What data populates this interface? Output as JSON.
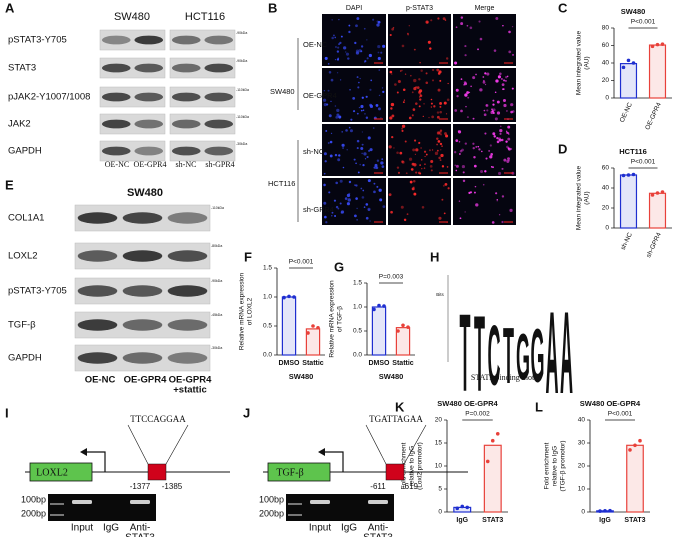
{
  "panel_a": {
    "label": "A",
    "groups": [
      "SW480",
      "HCT116"
    ],
    "rows": [
      {
        "name": "pSTAT3-Y705",
        "marker": "-90kDa"
      },
      {
        "name": "STAT3",
        "marker": "-90kDa"
      },
      {
        "name": "pJAK2-Y1007/1008",
        "marker": "-110kDa"
      },
      {
        "name": "JAK2",
        "marker": "-110kDa"
      },
      {
        "name": "GAPDH",
        "marker": "-30kDa"
      }
    ],
    "lanes": [
      "OE-NC",
      "OE-GPR4",
      "sh-NC",
      "sh-GPR4"
    ]
  },
  "panel_b": {
    "label": "B",
    "channels": [
      "DAPI",
      "p-STAT3",
      "Merge"
    ],
    "cells": [
      "SW480",
      "HCT116"
    ],
    "conditions": [
      "OE-NC",
      "OE-GPR4",
      "sh-NC",
      "sh-GPR4"
    ]
  },
  "panel_c": {
    "label": "C",
    "chart": {
      "type": "bar",
      "title": "SW480",
      "ylabel": [
        "Mean integrated value",
        "(AU)"
      ],
      "categories": [
        "OE-NC",
        "OE-GPR4"
      ],
      "values": [
        39.3,
        60.5
      ],
      "points": [
        [
          35,
          43,
          40
        ],
        [
          59,
          61,
          61.5
        ]
      ],
      "colors": [
        "#1f2fd0",
        "#e8413a"
      ],
      "ylim": [
        0,
        80
      ],
      "yticks": [
        0,
        20,
        40,
        60,
        80
      ],
      "annotation": "P<0.001"
    }
  },
  "panel_d": {
    "label": "D",
    "chart": {
      "type": "bar",
      "title": "HCT116",
      "ylabel": [
        "Mean integrated value",
        "(AU)"
      ],
      "categories": [
        "sh-NC",
        "sh-GPR4"
      ],
      "values": [
        53,
        34.7
      ],
      "points": [
        [
          52.5,
          53,
          53.5
        ],
        [
          33,
          35,
          36
        ]
      ],
      "colors": [
        "#1f2fd0",
        "#e8413a"
      ],
      "ylim": [
        0,
        60
      ],
      "yticks": [
        0,
        20,
        40,
        60
      ],
      "annotation": "P<0.001"
    }
  },
  "panel_e": {
    "label": "E",
    "group": "SW480",
    "rows": [
      {
        "name": "COL1A1",
        "marker": "-110kDa"
      },
      {
        "name": "LOXL2",
        "marker": "-80kDa"
      },
      {
        "name": "pSTAT3-Y705",
        "marker": "-90kDa"
      },
      {
        "name": "TGF-β",
        "marker": "-45kDa"
      },
      {
        "name": "GAPDH",
        "marker": "-30kDa"
      }
    ],
    "lanes": [
      [
        "OE-NC"
      ],
      [
        "OE-GPR4"
      ],
      [
        "OE-GPR4",
        "+stattic"
      ]
    ]
  },
  "panel_f": {
    "label": "F",
    "chart": {
      "type": "bar",
      "ylabel": [
        "Relative mRNA expression",
        "of LOXL2"
      ],
      "xlabel": "SW480",
      "categories": [
        "DMSO",
        "Stattic"
      ],
      "values": [
        1.0,
        0.45
      ],
      "points": [
        [
          0.99,
          1.01,
          1.0
        ],
        [
          0.38,
          0.5,
          0.47
        ]
      ],
      "colors": [
        "#1f2fd0",
        "#e8413a"
      ],
      "ylim": [
        0,
        1.5
      ],
      "yticks": [
        {
          "value": 0,
          "label": "0.0"
        },
        0.5,
        {
          "value": 1,
          "label": "1.0"
        },
        1.5
      ],
      "annotation": "P<0.001"
    }
  },
  "panel_g": {
    "label": "G",
    "chart": {
      "type": "bar",
      "ylabel": [
        "Relative mRNA expression",
        "of TGF-β"
      ],
      "xlabel": "SW480",
      "categories": [
        "DMSO",
        "Stattic"
      ],
      "values": [
        1.0,
        0.57
      ],
      "points": [
        [
          0.95,
          1.03,
          1.02
        ],
        [
          0.5,
          0.62,
          0.58
        ]
      ],
      "colors": [
        "#1f2fd0",
        "#e8413a"
      ],
      "ylim": [
        0,
        1.5
      ],
      "yticks": [
        {
          "value": 0,
          "label": "0.0"
        },
        0.5,
        {
          "value": 1,
          "label": "1.0"
        },
        1.5
      ],
      "annotation": "P=0.003"
    }
  },
  "panel_h": {
    "label": "H",
    "motif": [
      "T",
      "T",
      "C",
      "T",
      "G",
      "G",
      "A",
      "A"
    ],
    "ylabel": "Bits",
    "caption": "STAT3 binding motif"
  },
  "panel_i": {
    "label": "I",
    "gene": "LOXL2",
    "site": "TTCCAGGAA",
    "positions": [
      "-1377",
      "-1385"
    ],
    "sizes": [
      "100bp",
      "200bp"
    ],
    "lanes": [
      [
        "Input"
      ],
      [
        "IgG"
      ],
      [
        "Anti-",
        "STAT3"
      ]
    ]
  },
  "panel_j": {
    "label": "J",
    "gene": "TGF-β",
    "site": "TGATTAGAA",
    "positions": [
      "-611",
      "-619"
    ],
    "sizes": [
      "100bp",
      "200bp"
    ],
    "lanes": [
      [
        "Input"
      ],
      [
        "IgG"
      ],
      [
        "Anti-",
        "STAT3"
      ]
    ]
  },
  "panel_k": {
    "label": "K",
    "chart": {
      "type": "bar",
      "title": "SW480 OE-GPR4",
      "ylabel": [
        "Fold enrichment",
        "relative to IgG",
        "(Loxl2 promotor)"
      ],
      "categories": [
        "IgG",
        "STAT3"
      ],
      "values": [
        1.0,
        14.5
      ],
      "points": [
        [
          0.8,
          1.2,
          1.0
        ],
        [
          11,
          15.5,
          17
        ]
      ],
      "colors": [
        "#1f2fd0",
        "#e8413a"
      ],
      "ylim": [
        0,
        20
      ],
      "yticks": [
        0,
        5,
        10,
        15,
        20
      ],
      "annotation": "P=0.002"
    }
  },
  "panel_l": {
    "label": "L",
    "chart": {
      "type": "bar",
      "title": "SW480 OE-GPR4",
      "ylabel": [
        "Fold enrichment",
        "relative to IgG",
        "(TGF-β promotor)"
      ],
      "categories": [
        "IgG",
        "STAT3"
      ],
      "values": [
        0.5,
        29
      ],
      "points": [
        [
          0.4,
          0.5,
          0.6
        ],
        [
          27,
          29,
          31
        ]
      ],
      "colors": [
        "#1f2fd0",
        "#e8413a"
      ],
      "ylim": [
        0,
        40
      ],
      "yticks": [
        0,
        10,
        20,
        30,
        40
      ],
      "annotation": "P<0.001"
    }
  }
}
